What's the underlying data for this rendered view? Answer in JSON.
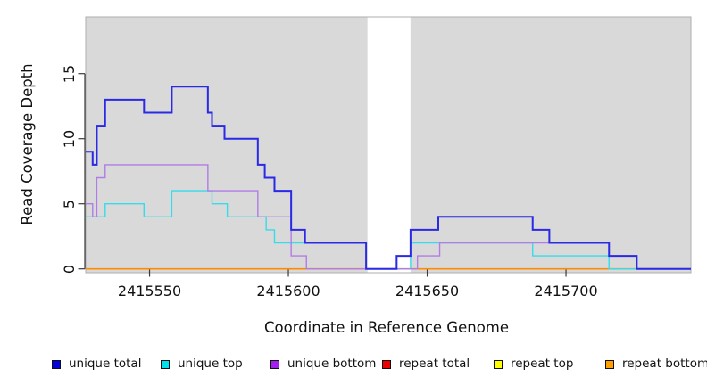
{
  "figure": {
    "y_axis": {
      "label": "Read Coverage Depth",
      "tick_labels": [
        "0",
        "5",
        "10",
        "15"
      ]
    },
    "x_axis": {
      "label": "Coordinate in Reference Genome",
      "tick_labels": [
        "2415550",
        "2415600",
        "2415650",
        "2415700"
      ]
    }
  },
  "legend": {
    "items": [
      {
        "label": "unique total",
        "color": "#0202dd"
      },
      {
        "label": "unique top",
        "color": "#00e1ee"
      },
      {
        "label": "unique bottom",
        "color": "#a020f0"
      },
      {
        "label": "repeat total",
        "color": "#ee0000"
      },
      {
        "label": "repeat top",
        "color": "#ffff00"
      },
      {
        "label": "repeat bottom",
        "color": "#ffa000"
      }
    ]
  },
  "chart_data": {
    "type": "line",
    "step_style": "post",
    "title": "",
    "xlabel": "Coordinate in Reference Genome",
    "ylabel": "Read Coverage Depth",
    "xlim": [
      2415527,
      2415745
    ],
    "ylim": [
      0,
      19.6
    ],
    "x_ticks": [
      2415550,
      2415600,
      2415650,
      2415700
    ],
    "y_ticks": [
      0,
      5,
      10,
      15
    ],
    "grid": false,
    "legend_position": "bottom",
    "panel_bg": "#d9d9d9",
    "panel_border": "#aeaeae",
    "axis_color": "#3a3a3a",
    "masked_gap": {
      "x_start": 2415628.5,
      "x_end": 2415644
    },
    "draw_order": [
      3,
      4,
      5,
      1,
      2,
      0
    ],
    "series": [
      {
        "name": "unique total",
        "color": "#2929e6",
        "width": 2,
        "steps": [
          [
            2415527,
            9
          ],
          [
            2415529.5,
            8
          ],
          [
            2415531,
            11
          ],
          [
            2415534,
            13
          ],
          [
            2415548,
            12
          ],
          [
            2415558,
            14
          ],
          [
            2415571,
            12
          ],
          [
            2415572.5,
            11
          ],
          [
            2415577,
            10
          ],
          [
            2415589,
            8
          ],
          [
            2415591.5,
            7
          ],
          [
            2415595,
            6
          ],
          [
            2415601,
            3
          ],
          [
            2415606,
            2
          ],
          [
            2415628,
            0
          ],
          [
            2415639,
            1
          ],
          [
            2415644,
            3
          ],
          [
            2415654,
            4
          ],
          [
            2415688,
            3
          ],
          [
            2415694,
            2
          ],
          [
            2415715.5,
            1
          ],
          [
            2415725.5,
            0
          ]
        ]
      },
      {
        "name": "unique top",
        "color": "#35dcea",
        "width": 1.4,
        "steps": [
          [
            2415527,
            4
          ],
          [
            2415534,
            5
          ],
          [
            2415548,
            4
          ],
          [
            2415558,
            6
          ],
          [
            2415572.5,
            5
          ],
          [
            2415578,
            4
          ],
          [
            2415592,
            3
          ],
          [
            2415595,
            2
          ],
          [
            2415628,
            0
          ],
          [
            2415644,
            2
          ],
          [
            2415688,
            1
          ],
          [
            2415715.5,
            0
          ]
        ]
      },
      {
        "name": "unique bottom",
        "color": "#b07ce6",
        "width": 1.4,
        "steps": [
          [
            2415527,
            5
          ],
          [
            2415529.5,
            4
          ],
          [
            2415531,
            7
          ],
          [
            2415534,
            8
          ],
          [
            2415571,
            6
          ],
          [
            2415589,
            4
          ],
          [
            2415601,
            1
          ],
          [
            2415606.5,
            0
          ],
          [
            2415646.5,
            1
          ],
          [
            2415654.5,
            2
          ],
          [
            2415715.5,
            1
          ],
          [
            2415725.5,
            0
          ]
        ]
      },
      {
        "name": "repeat total",
        "color": "#dd0000",
        "width": 1.4,
        "steps": [
          [
            2415527,
            0
          ]
        ]
      },
      {
        "name": "repeat top",
        "color": "#f2f200",
        "width": 1.4,
        "steps": [
          [
            2415527,
            0
          ]
        ]
      },
      {
        "name": "repeat bottom",
        "color": "#ff8c00",
        "width": 1.7,
        "steps": [
          [
            2415527,
            0
          ]
        ]
      }
    ]
  }
}
